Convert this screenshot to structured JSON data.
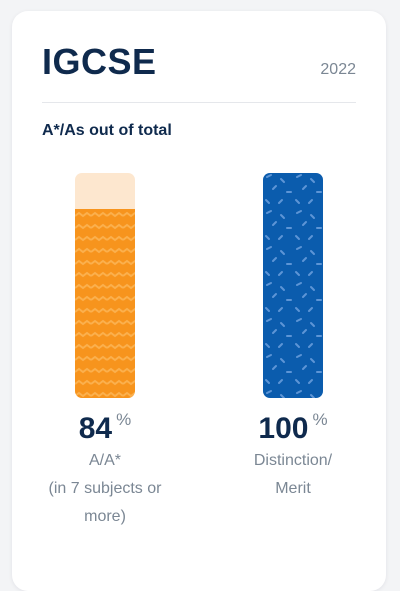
{
  "card": {
    "title": "IGCSE",
    "year": "2022",
    "subtitle": "A*/As out of total"
  },
  "stats": [
    {
      "value": "84",
      "unit": "%",
      "level": 84,
      "label_lines": [
        "A/A*",
        "(in 7 subjects or",
        "more)"
      ],
      "bar_color": "#f7941d",
      "bar_track_color": "#fde7cf",
      "pattern": "zigzag-icon"
    },
    {
      "value": "100",
      "unit": "%",
      "level": 100,
      "label_lines": [
        "Distinction/",
        "Merit"
      ],
      "bar_color": "#0b5cad",
      "pattern": "confetti-icon"
    }
  ],
  "colors": {
    "heading": "#0f2a4d",
    "muted": "#7b8794"
  }
}
